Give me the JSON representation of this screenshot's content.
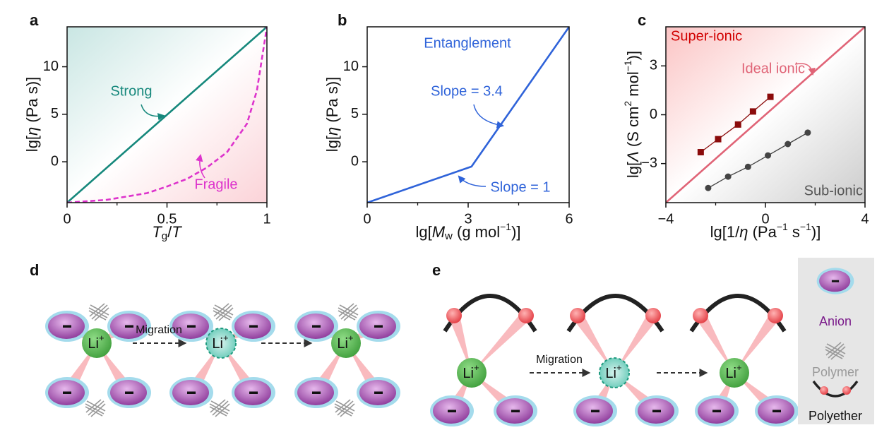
{
  "panel_labels": [
    "a",
    "b",
    "c",
    "d",
    "e"
  ],
  "chart_data": [
    {
      "type": "line",
      "xlim": [
        0,
        1
      ],
      "xticks": [
        0,
        0.5,
        1
      ],
      "xminorticks": [
        0.25,
        0.75
      ],
      "ylim": [
        -4.3,
        14.2
      ],
      "yticks": [
        0,
        5,
        10
      ],
      "xlabel": [
        "T",
        "g",
        "/",
        "T"
      ],
      "ylabel": [
        "lg[",
        "η",
        " (Pa s)]"
      ],
      "series": [
        {
          "name": "Strong",
          "color": "#16887c",
          "x": [
            0,
            1
          ],
          "values": [
            -4.3,
            14.2
          ]
        },
        {
          "name": "Fragile",
          "color": "#dd33cc",
          "dashed": true,
          "x": [
            0,
            0.2,
            0.4,
            0.5,
            0.6,
            0.7,
            0.8,
            0.9,
            0.95,
            1
          ],
          "values": [
            -4.3,
            -4.0,
            -3.3,
            -2.6,
            -1.8,
            -0.6,
            1.0,
            4.0,
            7.5,
            14.2
          ]
        }
      ]
    },
    {
      "type": "line",
      "xlim": [
        0,
        6
      ],
      "xticks": [
        0,
        3,
        6
      ],
      "xminorticks": [
        1.5,
        4.5
      ],
      "ylim": [
        -4.3,
        14.2
      ],
      "yticks": [
        0,
        5,
        10
      ],
      "xlabel": [
        "lg[",
        "M",
        "w",
        " (g mol",
        "−1",
        ")]"
      ],
      "ylabel": [
        "lg[",
        "η",
        " (Pa s)]"
      ],
      "annotations": [
        "Entanglement",
        "Slope = 3.4",
        "Slope = 1"
      ],
      "series": [
        {
          "color": "#2f63d9",
          "x": [
            0,
            3.1,
            6
          ],
          "values": [
            -4.3,
            -0.5,
            14.2
          ]
        }
      ]
    },
    {
      "type": "scatter",
      "xlim": [
        -4,
        4
      ],
      "xticks": [
        {
          "value": -4,
          "label": "−4"
        },
        0,
        4
      ],
      "xminorticks": [
        -2,
        2
      ],
      "ylim": [
        -5.4,
        5.4
      ],
      "yticks": [
        {
          "value": -3,
          "label": "−3"
        },
        0,
        3
      ],
      "xlabel": [
        "lg[1/",
        "η",
        " (Pa",
        "−1",
        " s",
        "−1",
        ")]"
      ],
      "ylabel": [
        "lg[",
        "Λ",
        " (S cm",
        "2",
        " mol",
        "−1",
        ")]"
      ],
      "annotations": [
        "Super-ionic",
        "Sub-ionic"
      ],
      "series": [
        {
          "name": "Ideal ionic",
          "color": "#e06477",
          "x": [
            -4,
            4
          ],
          "values": [
            -5.4,
            5.4
          ]
        },
        {
          "color": "#8b0b0b",
          "marker": "square",
          "x": [
            -2.6,
            -1.9,
            -1.1,
            -0.5,
            0.2
          ],
          "values": [
            -2.3,
            -1.5,
            -0.6,
            0.2,
            1.1
          ]
        },
        {
          "color": "#444444",
          "marker": "circle",
          "x": [
            -2.3,
            -1.5,
            -0.7,
            0.1,
            0.9,
            1.7
          ],
          "values": [
            -4.5,
            -3.8,
            -3.2,
            -2.5,
            -1.8,
            -1.1
          ]
        }
      ]
    }
  ],
  "diagram": {
    "ion": "Li",
    "ion_charge": "+",
    "migration": "Migration",
    "legend": [
      "Anion",
      "Polymer",
      "Polyether"
    ]
  }
}
